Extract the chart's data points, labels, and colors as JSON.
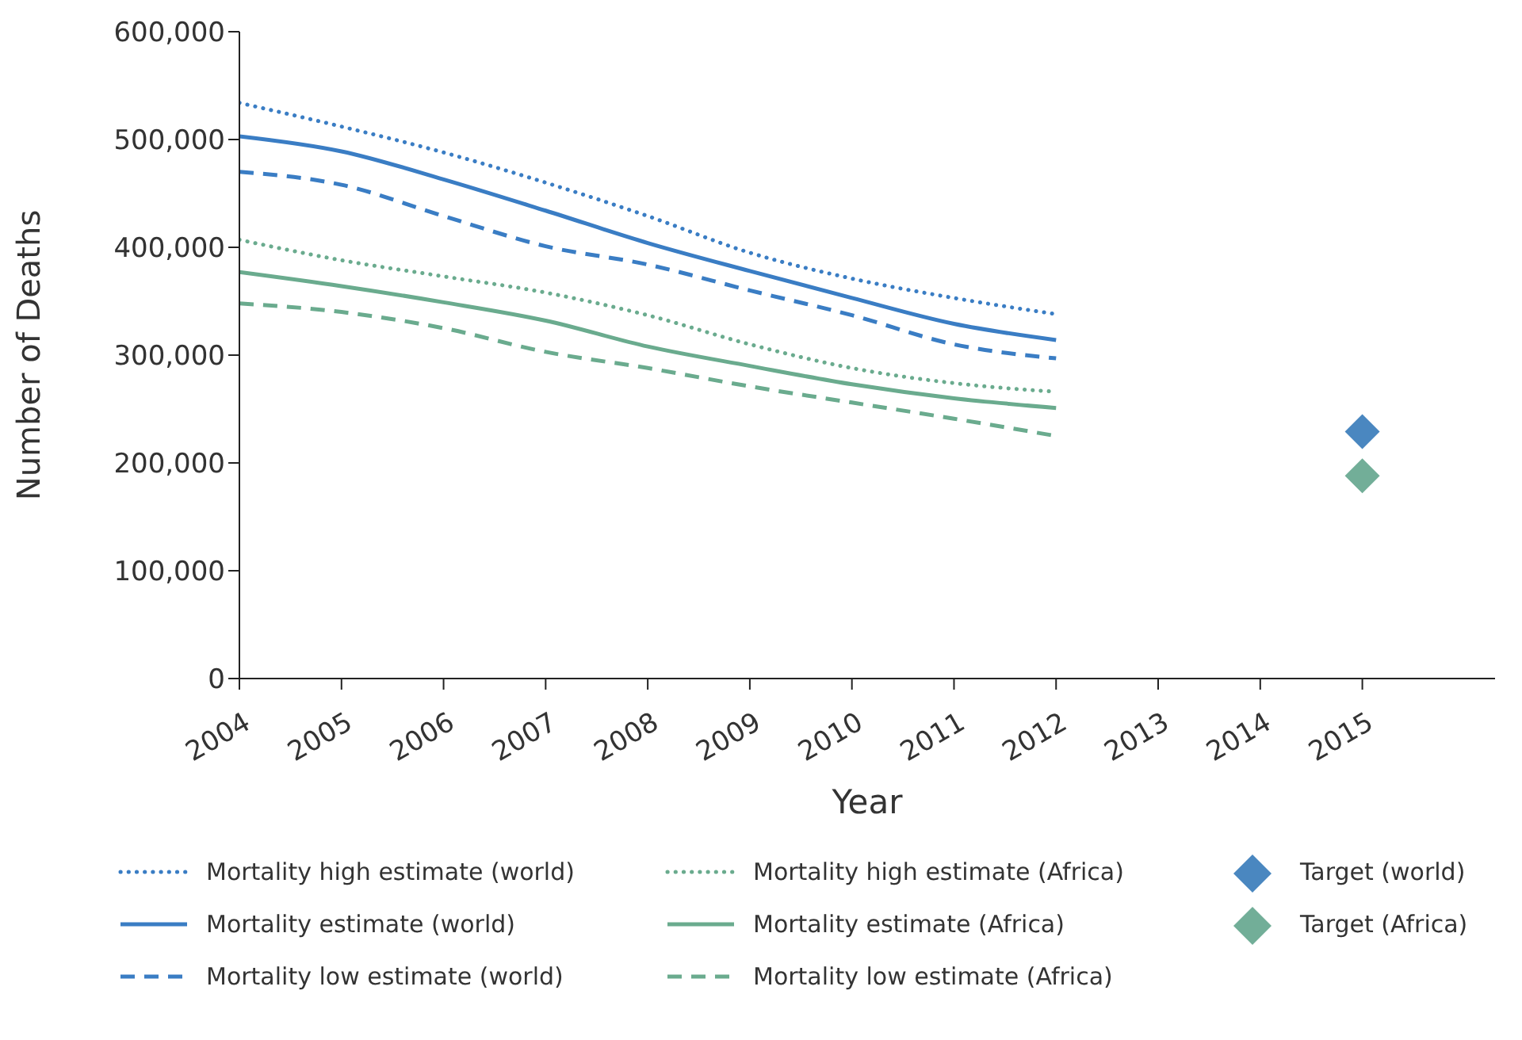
{
  "chart_data": {
    "type": "line",
    "xlabel": "Year",
    "ylabel": "Number of Deaths",
    "xlim": [
      2004,
      2016.3
    ],
    "xticks": [
      2004,
      2005,
      2006,
      2007,
      2008,
      2009,
      2010,
      2011,
      2012,
      2013,
      2014,
      2015
    ],
    "ylim": [
      0,
      600000
    ],
    "yticks": [
      0,
      {
        "value": 100000,
        "label": "100,000"
      },
      {
        "value": 200000,
        "label": "200,000"
      },
      {
        "value": 300000,
        "label": "300,000"
      },
      {
        "value": 400000,
        "label": "400,000"
      },
      {
        "value": 500000,
        "label": "500,000"
      },
      {
        "value": 600000,
        "label": "600,000"
      }
    ],
    "grid": false,
    "legend": "bottom",
    "marker": "none",
    "series": [
      {
        "name": "Mortality high estimate (world)",
        "color": "#3a7dc4",
        "line_style": "dotted",
        "x": [
          2004,
          2005,
          2006,
          2007,
          2008,
          2009,
          2010,
          2011,
          2012
        ],
        "values": [
          534000,
          512000,
          488000,
          460000,
          429000,
          395000,
          371000,
          353000,
          338000
        ]
      },
      {
        "name": "Mortality estimate (world)",
        "color": "#3a7dc4",
        "line_style": "solid",
        "x": [
          2004,
          2005,
          2006,
          2007,
          2008,
          2009,
          2010,
          2011,
          2012
        ],
        "values": [
          503000,
          489000,
          463000,
          434000,
          404000,
          378000,
          353000,
          329000,
          314000
        ]
      },
      {
        "name": "Mortality low estimate (world)",
        "color": "#3a7dc4",
        "line_style": "dashed",
        "x": [
          2004,
          2005,
          2006,
          2007,
          2008,
          2009,
          2010,
          2011,
          2012
        ],
        "values": [
          470000,
          458000,
          429000,
          401000,
          384000,
          360000,
          337000,
          310000,
          297000
        ]
      },
      {
        "name": "Mortality high estimate (Africa)",
        "color": "#6aab8e",
        "line_style": "dotted",
        "x": [
          2004,
          2005,
          2006,
          2007,
          2008,
          2009,
          2010,
          2011,
          2012
        ],
        "values": [
          407000,
          388000,
          373000,
          358000,
          337000,
          310000,
          288000,
          274000,
          266000
        ]
      },
      {
        "name": "Mortality estimate (Africa)",
        "color": "#6aab8e",
        "line_style": "solid",
        "x": [
          2004,
          2005,
          2006,
          2007,
          2008,
          2009,
          2010,
          2011,
          2012
        ],
        "values": [
          377000,
          364000,
          349000,
          332000,
          308000,
          290000,
          273000,
          260000,
          251000
        ]
      },
      {
        "name": "Mortality low estimate (Africa)",
        "color": "#6aab8e",
        "line_style": "dashed",
        "x": [
          2004,
          2005,
          2006,
          2007,
          2008,
          2009,
          2010,
          2011,
          2012
        ],
        "values": [
          348000,
          340000,
          325000,
          303000,
          288000,
          271000,
          256000,
          241000,
          225000
        ]
      },
      {
        "name": "Target (world)",
        "type": "scatter",
        "marker": "diamond",
        "color": "#4a87c0",
        "x": [
          2015
        ],
        "values": [
          229000
        ]
      },
      {
        "name": "Target (Africa)",
        "type": "scatter",
        "marker": "diamond",
        "color": "#72ae98",
        "x": [
          2015
        ],
        "values": [
          188000
        ]
      }
    ]
  }
}
